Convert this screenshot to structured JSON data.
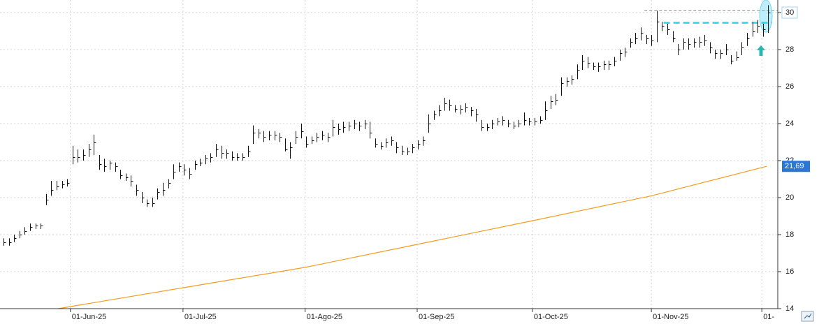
{
  "chart_data": {
    "type": "hlc",
    "bar_color": "#111111",
    "ylim": [
      14,
      30.68
    ],
    "yticks": [
      14,
      16,
      18,
      20,
      22,
      24,
      26,
      28,
      30
    ],
    "xlim": [
      -0.66,
      145.8
    ],
    "xticks": [
      {
        "value": 12.6,
        "label": "01-Jun-25"
      },
      {
        "value": 33.8,
        "label": "01-Jul-25"
      },
      {
        "value": 56.8,
        "label": "01-Ago-25"
      },
      {
        "value": 77.9,
        "label": "01-Sep-25"
      },
      {
        "value": 99.6,
        "label": "01-Oct-25"
      },
      {
        "value": 122,
        "label": "01-Nov-25"
      },
      {
        "value": 142.8,
        "label": "01-"
      }
    ],
    "grid": true,
    "high": [
      17.8,
      17.8,
      18.0,
      18.2,
      18.4,
      18.6,
      18.6,
      18.6,
      20.2,
      20.9,
      20.9,
      20.9,
      21.0,
      22.8,
      22.6,
      22.6,
      22.9,
      23.4,
      22.3,
      22.1,
      22.0,
      21.9,
      21.5,
      21.3,
      21.2,
      20.7,
      20.3,
      19.9,
      20.0,
      20.5,
      20.8,
      21.0,
      21.8,
      21.9,
      21.8,
      21.6,
      22.0,
      22.1,
      22.3,
      22.4,
      22.9,
      22.8,
      22.6,
      22.5,
      22.4,
      22.4,
      22.8,
      23.9,
      23.7,
      23.6,
      23.6,
      23.6,
      23.5,
      23.2,
      23.0,
      23.6,
      24.0,
      23.3,
      23.3,
      23.5,
      23.6,
      23.5,
      24.2,
      24.0,
      24.1,
      24.1,
      24.2,
      24.1,
      24.2,
      24.1,
      23.2,
      23.0,
      23.2,
      23.3,
      23.0,
      22.8,
      22.7,
      22.9,
      23.1,
      23.3,
      24.5,
      24.7,
      25.0,
      25.4,
      25.3,
      25.0,
      25.0,
      25.1,
      24.9,
      24.8,
      24.2,
      24.0,
      24.2,
      24.3,
      24.4,
      24.2,
      24.1,
      24.2,
      24.6,
      24.3,
      24.3,
      24.4,
      25.2,
      25.5,
      25.6,
      26.5,
      26.5,
      26.6,
      27.2,
      27.7,
      27.6,
      27.3,
      27.3,
      27.4,
      27.4,
      27.6,
      28.0,
      28.1,
      28.6,
      28.9,
      29.2,
      28.8,
      28.8,
      30.1,
      29.5,
      29.4,
      29.0,
      28.3,
      28.6,
      28.6,
      28.6,
      28.7,
      28.8,
      28.4,
      28.0,
      28.0,
      28.3,
      27.7,
      27.9,
      28.4,
      28.9,
      29.5,
      29.6,
      29.4,
      30.4
    ],
    "low": [
      17.4,
      17.4,
      17.6,
      17.8,
      18.0,
      18.2,
      18.3,
      18.3,
      19.6,
      20.1,
      20.4,
      20.5,
      20.6,
      21.8,
      21.9,
      22.0,
      22.2,
      22.3,
      21.5,
      21.4,
      21.5,
      21.4,
      21.0,
      20.9,
      20.6,
      20.1,
      19.7,
      19.5,
      19.5,
      19.9,
      20.1,
      20.5,
      21.0,
      21.4,
      21.2,
      21.0,
      21.5,
      21.7,
      21.8,
      21.9,
      22.2,
      22.1,
      22.1,
      22.0,
      22.0,
      22.0,
      22.2,
      22.9,
      23.2,
      23.0,
      23.1,
      23.1,
      23.0,
      22.5,
      22.1,
      22.9,
      23.2,
      22.7,
      22.9,
      23.0,
      23.1,
      23.0,
      23.3,
      23.4,
      23.5,
      23.6,
      23.7,
      23.6,
      23.7,
      23.2,
      22.7,
      22.6,
      22.7,
      22.8,
      22.4,
      22.3,
      22.3,
      22.4,
      22.6,
      22.8,
      23.5,
      24.2,
      24.4,
      24.7,
      24.7,
      24.6,
      24.5,
      24.6,
      24.4,
      24.1,
      23.6,
      23.6,
      23.7,
      23.9,
      23.9,
      23.8,
      23.7,
      23.8,
      23.9,
      23.9,
      23.9,
      24.0,
      24.2,
      24.8,
      25.0,
      25.5,
      26.0,
      26.1,
      26.4,
      26.9,
      27.0,
      26.9,
      26.8,
      26.9,
      26.9,
      27.1,
      27.4,
      27.6,
      28.1,
      28.3,
      28.5,
      28.3,
      28.2,
      28.4,
      29.0,
      28.8,
      28.4,
      27.7,
      28.0,
      28.0,
      28.1,
      28.1,
      28.2,
      27.8,
      27.5,
      27.5,
      27.7,
      27.2,
      27.4,
      27.7,
      28.2,
      28.7,
      28.9,
      28.7,
      28.9
    ],
    "close": [
      17.6,
      17.6,
      17.8,
      18.0,
      18.2,
      18.4,
      18.5,
      18.5,
      19.9,
      20.4,
      20.6,
      20.7,
      20.8,
      22.2,
      22.2,
      22.3,
      22.6,
      23.0,
      21.8,
      21.7,
      21.9,
      21.7,
      21.2,
      21.1,
      20.9,
      20.4,
      20.0,
      19.7,
      19.7,
      20.3,
      20.4,
      20.8,
      21.4,
      21.7,
      21.5,
      21.3,
      21.8,
      21.9,
      22.1,
      22.2,
      22.6,
      22.4,
      22.4,
      22.2,
      22.2,
      22.2,
      22.5,
      23.5,
      23.5,
      23.3,
      23.4,
      23.4,
      23.3,
      22.6,
      22.7,
      23.3,
      23.6,
      22.9,
      23.1,
      23.3,
      23.4,
      23.3,
      23.8,
      23.7,
      23.8,
      23.9,
      24.0,
      23.9,
      24.0,
      23.5,
      22.9,
      22.8,
      23.0,
      23.1,
      22.7,
      22.5,
      22.5,
      22.7,
      22.9,
      23.1,
      24.0,
      24.5,
      24.7,
      25.1,
      25.0,
      24.8,
      24.8,
      24.9,
      24.7,
      24.5,
      23.8,
      23.8,
      24.0,
      24.1,
      24.2,
      24.0,
      23.9,
      24.0,
      24.2,
      24.1,
      24.1,
      24.2,
      24.7,
      25.2,
      25.3,
      26.2,
      26.3,
      26.4,
      26.9,
      27.4,
      27.3,
      27.1,
      27.1,
      27.2,
      27.2,
      27.4,
      27.8,
      27.9,
      28.4,
      28.6,
      28.9,
      28.6,
      28.5,
      29.5,
      29.3,
      29.1,
      28.6,
      28.0,
      28.4,
      28.3,
      28.4,
      28.4,
      28.5,
      28.1,
      27.8,
      27.8,
      28.0,
      27.4,
      27.6,
      28.1,
      28.6,
      29.0,
      29.3,
      29.1,
      30.0
    ],
    "moving_average": {
      "color": "#f39c1f",
      "x": [
        10.3,
        33.8,
        56.8,
        77.9,
        99.6,
        122,
        143.7
      ],
      "values": [
        14.0,
        15.13,
        16.23,
        17.47,
        18.75,
        20.1,
        21.69
      ],
      "value_labels": [
        null,
        null,
        null,
        null,
        null,
        null,
        "21,69"
      ],
      "label_color": "#2a78d6"
    },
    "levels": [
      {
        "value": 30.1,
        "x": [
          120.7,
          145.8
        ],
        "color": "#9e9e9e"
      },
      {
        "value": 29.45,
        "x": [
          124.3,
          144.7
        ],
        "color": "#2fd3e6"
      }
    ]
  }
}
